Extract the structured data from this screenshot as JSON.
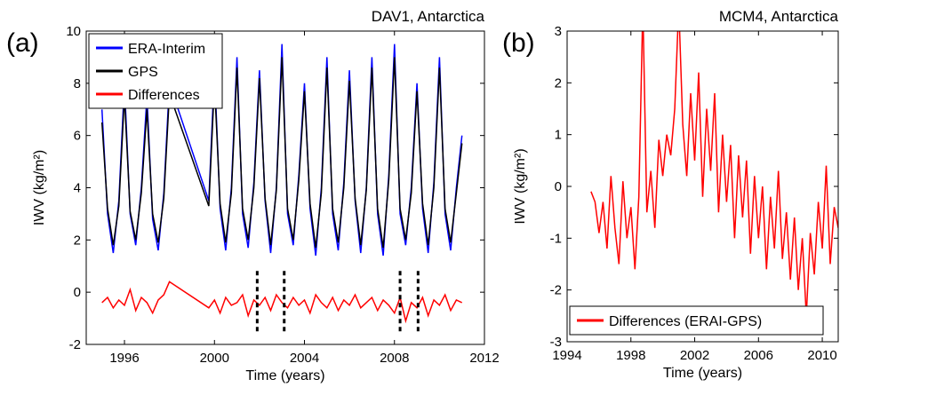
{
  "chart_data": [
    {
      "type": "line",
      "panel_label": "(a)",
      "title": "DAV1, Antarctica",
      "xlabel": "Time (years)",
      "ylabel": "IWV (kg/m²)",
      "xlim": [
        1994.3,
        2012
      ],
      "xticks": [
        1996,
        2000,
        2004,
        2008,
        2012
      ],
      "ylim": [
        -2,
        10
      ],
      "yticks": [
        -2,
        0,
        2,
        4,
        6,
        8,
        10
      ],
      "grid": false,
      "legend": "upper left",
      "x": [
        1995,
        1995.25,
        1995.5,
        1995.75,
        1996,
        1996.25,
        1996.5,
        1996.75,
        1997,
        1997.25,
        1997.5,
        1997.75,
        1998,
        1999.75,
        2000,
        2000.25,
        2000.5,
        2000.75,
        2001,
        2001.25,
        2001.5,
        2001.75,
        2002,
        2002.25,
        2002.5,
        2002.75,
        2003,
        2003.25,
        2003.5,
        2003.75,
        2004,
        2004.25,
        2004.5,
        2004.75,
        2005,
        2005.25,
        2005.5,
        2005.75,
        2006,
        2006.25,
        2006.5,
        2006.75,
        2007,
        2007.25,
        2007.5,
        2007.75,
        2008,
        2008.25,
        2008.5,
        2008.75,
        2009,
        2009.25,
        2009.5,
        2009.75,
        2010,
        2010.25,
        2010.5,
        2010.75,
        2011
      ],
      "series": [
        {
          "name": "ERA-Interim",
          "color": "#0000ff",
          "values": [
            7,
            3,
            1.5,
            3.5,
            8,
            3,
            1.8,
            4,
            7.5,
            2.8,
            1.6,
            3.8,
            8,
            3.5,
            8.5,
            3.2,
            1.6,
            4,
            9,
            3,
            1.7,
            4.2,
            8.5,
            3.5,
            1.5,
            4,
            9.5,
            3,
            1.8,
            4.5,
            8,
            3.2,
            1.4,
            4,
            9,
            3,
            1.6,
            4.2,
            8.5,
            3.5,
            1.5,
            4,
            9,
            3,
            1.4,
            4.5,
            9.5,
            3,
            1.8,
            4,
            8,
            3.2,
            1.5,
            4.2,
            9,
            3,
            1.6,
            4,
            6
          ]
        },
        {
          "name": "GPS",
          "color": "#000000",
          "values": [
            6.5,
            3.2,
            1.8,
            3.3,
            7.5,
            3.1,
            2,
            3.8,
            7,
            3,
            1.9,
            3.6,
            7.6,
            3.3,
            8,
            3.4,
            1.9,
            3.8,
            8.6,
            3.2,
            2,
            4,
            8.2,
            3.6,
            1.8,
            3.9,
            9,
            3.2,
            2,
            4.3,
            7.7,
            3.4,
            1.7,
            3.8,
            8.6,
            3.2,
            1.9,
            4,
            8.1,
            3.6,
            1.8,
            3.9,
            8.6,
            3.2,
            1.7,
            4.3,
            9,
            3.2,
            2,
            3.8,
            7.7,
            3.4,
            1.8,
            4,
            8.6,
            3.2,
            1.9,
            3.8,
            5.7
          ]
        },
        {
          "name": "Differences",
          "color": "#ff0000",
          "values": [
            -0.4,
            -0.2,
            -0.6,
            -0.3,
            -0.5,
            0.1,
            -0.7,
            -0.2,
            -0.4,
            -0.8,
            -0.3,
            -0.1,
            0.4,
            -0.6,
            -0.3,
            -0.8,
            -0.2,
            -0.5,
            -0.4,
            -0.1,
            -0.9,
            -0.3,
            -0.5,
            -0.2,
            -0.7,
            -0.1,
            -0.4,
            -0.6,
            -0.2,
            -0.5,
            -0.3,
            -0.8,
            -0.1,
            -0.4,
            -0.6,
            -0.2,
            -0.7,
            -0.3,
            -0.5,
            -0.1,
            -0.6,
            -0.4,
            -0.2,
            -0.7,
            -0.3,
            -0.5,
            -0.8,
            -0.2,
            -1.1,
            -0.4,
            -0.6,
            -0.2,
            -0.9,
            -0.3,
            -0.5,
            -0.1,
            -0.7,
            -0.3,
            -0.4
          ]
        }
      ],
      "vlines": [
        2001.9,
        2003.1,
        2008.25,
        2009.05
      ],
      "vline_range": [
        -1.5,
        0.9
      ]
    },
    {
      "type": "line",
      "panel_label": "(b)",
      "title": "MCM4, Antarctica",
      "xlabel": "Time (years)",
      "ylabel": "IWV (kg/m²)",
      "xlim": [
        1994,
        2011
      ],
      "xticks": [
        1994,
        1998,
        2002,
        2006,
        2010
      ],
      "ylim": [
        -3,
        3
      ],
      "yticks": [
        -3,
        -2,
        -1,
        0,
        1,
        2,
        3
      ],
      "grid": false,
      "legend": "lower left",
      "x": [
        1995.5,
        1995.75,
        1996,
        1996.25,
        1996.5,
        1996.75,
        1997,
        1997.25,
        1997.5,
        1997.75,
        1998,
        1998.25,
        1998.5,
        1998.75,
        1999,
        1999.25,
        1999.5,
        1999.75,
        2000,
        2000.25,
        2000.5,
        2000.75,
        2001,
        2001.25,
        2001.5,
        2001.75,
        2002,
        2002.25,
        2002.5,
        2002.75,
        2003,
        2003.25,
        2003.5,
        2003.75,
        2004,
        2004.25,
        2004.5,
        2004.75,
        2005,
        2005.25,
        2005.5,
        2005.75,
        2006,
        2006.25,
        2006.5,
        2006.75,
        2007,
        2007.25,
        2007.5,
        2007.75,
        2008,
        2008.25,
        2008.5,
        2008.75,
        2009,
        2009.25,
        2009.5,
        2009.75,
        2010,
        2010.25,
        2010.5,
        2010.75,
        2011
      ],
      "series": [
        {
          "name": "Differences (ERAI-GPS)",
          "color": "#ff0000",
          "values": [
            -0.1,
            -0.3,
            -0.9,
            -0.3,
            -1.2,
            0.2,
            -0.8,
            -1.5,
            0.1,
            -1.0,
            -0.4,
            -1.6,
            -0.2,
            3.5,
            -0.5,
            0.3,
            -0.8,
            0.9,
            0.2,
            1.0,
            0.6,
            1.5,
            3.5,
            1.2,
            0.2,
            1.8,
            0.5,
            2.2,
            -0.2,
            1.5,
            0.3,
            1.8,
            -0.5,
            1.0,
            -0.3,
            0.8,
            -1.0,
            0.6,
            -0.6,
            0.5,
            -1.3,
            0.2,
            -1.0,
            0.0,
            -1.6,
            -0.2,
            -1.2,
            0.3,
            -1.4,
            -0.5,
            -1.8,
            -0.6,
            -2.0,
            -1.0,
            -2.5,
            -0.9,
            -1.7,
            -0.3,
            -1.2,
            0.4,
            -1.5,
            -0.4,
            -0.8
          ]
        }
      ]
    }
  ]
}
